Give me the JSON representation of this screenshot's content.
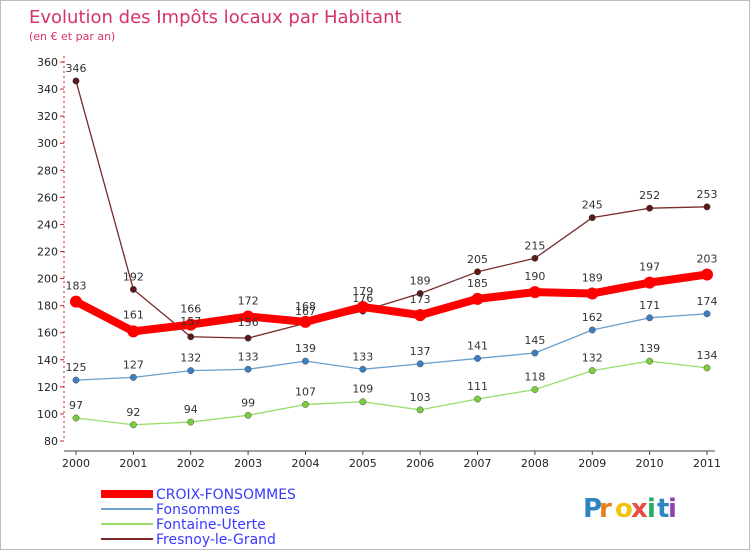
{
  "chart_data": {
    "type": "line",
    "title": "Evolution des Impôts locaux par Habitant",
    "subtitle": "(en € et par an)",
    "xlabel": "",
    "ylabel": "",
    "x": [
      "2000",
      "2001",
      "2002",
      "2003",
      "2004",
      "2005",
      "2006",
      "2007",
      "2008",
      "2009",
      "2010",
      "2011"
    ],
    "ylim": [
      80,
      360
    ],
    "yticks": [
      80,
      100,
      120,
      140,
      160,
      180,
      200,
      220,
      240,
      260,
      280,
      300,
      320,
      340,
      360
    ],
    "grid": false,
    "legend_position": "bottom-left",
    "series": [
      {
        "name": "Fresnoy-le-Grand",
        "color": "#7a2a2a",
        "values": [
          346,
          192,
          157,
          156,
          167,
          176,
          189,
          205,
          215,
          245,
          252,
          253
        ],
        "labels": [
          "346",
          "192",
          "157",
          "156",
          "167",
          "176",
          "189",
          "205",
          "215",
          "245",
          "252",
          "253"
        ]
      },
      {
        "name": "Fonsommes",
        "color": "#6aa0cf",
        "values": [
          125,
          127,
          132,
          133,
          139,
          133,
          137,
          141,
          145,
          162,
          171,
          174
        ],
        "labels": [
          "125",
          "127",
          "132",
          "133",
          "139",
          "133",
          "137",
          "141",
          "145",
          "162",
          "171",
          "174"
        ]
      },
      {
        "name": "Fontaine-Uterte",
        "color": "#99dd66",
        "values": [
          97,
          92,
          94,
          99,
          107,
          109,
          103,
          111,
          118,
          132,
          139,
          134
        ],
        "labels": [
          "97",
          "92",
          "94",
          "99",
          "107",
          "109",
          "103",
          "111",
          "118",
          "132",
          "139",
          "134"
        ]
      },
      {
        "name": "CROIX-FONSOMMES",
        "color": "#ff0000",
        "values": [
          183,
          161,
          166,
          172,
          168,
          179,
          173,
          185,
          190,
          189,
          197,
          203
        ],
        "labels": [
          "183",
          "161",
          "166",
          "172",
          "168",
          "179",
          "173",
          "185",
          "190",
          "189",
          "197",
          "203"
        ]
      }
    ],
    "legend_order": [
      "CROIX-FONSOMMES",
      "Fonsommes",
      "Fontaine-Uterte",
      "Fresnoy-le-Grand"
    ],
    "legend_text_color": "#3a3aff"
  },
  "brand": {
    "letters": [
      "P",
      "r",
      "o",
      "x",
      "i",
      "t",
      "i"
    ],
    "colors": [
      "#2e86c1",
      "#e67e22",
      "#f1c40f",
      "#e74c3c",
      "#27ae60",
      "#2e86c1",
      "#8e44ad"
    ]
  }
}
